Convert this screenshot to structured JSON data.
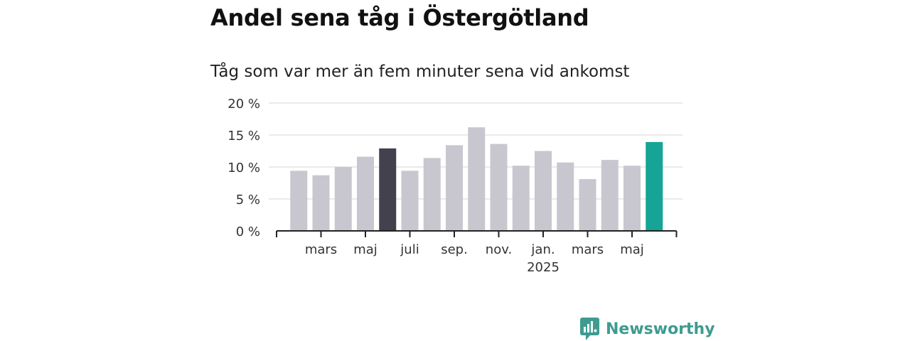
{
  "title": "Andel sena tåg i Östergötland",
  "subtitle": "Tåg som var mer än fem minuter sena vid ankomst",
  "brand": "Newsworthy",
  "colors": {
    "bar_default": "#c8c7cf",
    "bar_highlight_dark": "#43414e",
    "bar_highlight_latest": "#15a495",
    "grid": "#dddddd",
    "axis": "#222222",
    "brand": "#3e9b8f"
  },
  "chart_data": {
    "type": "bar",
    "title": "Andel sena tåg i Östergötland",
    "subtitle": "Tåg som var mer än fem minuter sena vid ankomst",
    "xlabel": "",
    "ylabel": "",
    "ylim": [
      0,
      20
    ],
    "y_ticks": [
      0,
      5,
      10,
      15,
      20
    ],
    "y_tick_labels": [
      "0 %",
      "5 %",
      "10 %",
      "15 %",
      "20 %"
    ],
    "categories": [
      "2024-02",
      "2024-03",
      "2024-04",
      "2024-05",
      "2024-06",
      "2024-07",
      "2024-08",
      "2024-09",
      "2024-10",
      "2024-11",
      "2024-12",
      "2025-01",
      "2025-02",
      "2025-03",
      "2025-04",
      "2025-05",
      "2025-06"
    ],
    "values": [
      9.4,
      8.7,
      10.0,
      11.6,
      12.9,
      9.4,
      11.4,
      13.4,
      16.2,
      13.6,
      10.2,
      12.5,
      10.7,
      8.1,
      11.1,
      10.2,
      13.9
    ],
    "highlight_dark_index": 4,
    "highlight_latest_index": 16,
    "x_tick_labels": [
      {
        "month": "2024-03",
        "label": "mars",
        "sub": ""
      },
      {
        "month": "2024-05",
        "label": "maj",
        "sub": ""
      },
      {
        "month": "2024-07",
        "label": "juli",
        "sub": ""
      },
      {
        "month": "2024-09",
        "label": "sep.",
        "sub": ""
      },
      {
        "month": "2024-11",
        "label": "nov.",
        "sub": ""
      },
      {
        "month": "2025-01",
        "label": "jan.",
        "sub": "2025"
      },
      {
        "month": "2025-03",
        "label": "mars",
        "sub": ""
      },
      {
        "month": "2025-05",
        "label": "maj",
        "sub": ""
      }
    ],
    "grid": true,
    "legend": "none"
  }
}
